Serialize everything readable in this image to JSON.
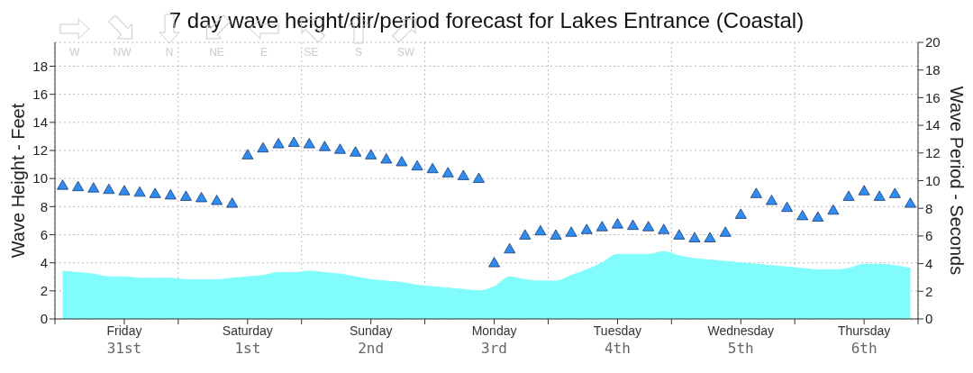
{
  "chart_data": {
    "type": "area",
    "title": "7 day wave height/dir/period forecast for Lakes Entrance (Coastal)",
    "ylabel": "Wave Height - Feet",
    "y2label": "Wave Period - Seconds",
    "annotations": [
      "W",
      "NW",
      "N",
      "NE",
      "E",
      "SE",
      "S",
      "SW"
    ],
    "categories": [
      null,
      null,
      null,
      null,
      "Friday\n31st",
      null,
      null,
      null,
      null,
      null,
      null,
      null,
      "Saturday\n1st",
      null,
      null,
      null,
      null,
      null,
      null,
      null,
      "Sunday\n2nd",
      null,
      null,
      null,
      null,
      null,
      null,
      null,
      "Monday\n3rd",
      null,
      null,
      null,
      null,
      null,
      null,
      null,
      "Tuesday\n4th",
      null,
      null,
      null,
      null,
      null,
      null,
      null,
      "Wednesday\n5th",
      null,
      null,
      null,
      null,
      null,
      null,
      null,
      "Thursday\n6th",
      null,
      null,
      null
    ],
    "ylim": [
      0,
      19.7
    ],
    "yticks": [
      0,
      2,
      4,
      6,
      8,
      10,
      12,
      14,
      16,
      18
    ],
    "y2lim": [
      0,
      20
    ],
    "y2ticks": [
      0,
      2,
      4,
      6,
      8,
      10,
      12,
      14,
      16,
      18,
      20
    ],
    "grid": true,
    "series": [
      {
        "color": "#80fcfc",
        "values": [
          3.4,
          3.3,
          3.2,
          3.0,
          3.0,
          2.9,
          2.9,
          2.9,
          2.8,
          2.8,
          2.8,
          2.9,
          3.0,
          3.1,
          3.3,
          3.3,
          3.4,
          3.3,
          3.2,
          3.0,
          2.8,
          2.7,
          2.6,
          2.4,
          2.3,
          2.2,
          2.1,
          2.0,
          2.3,
          3.0,
          2.8,
          2.7,
          2.7,
          3.1,
          3.5,
          4.0,
          4.6,
          4.6,
          4.6,
          4.8,
          4.5,
          4.3,
          4.2,
          4.1,
          4.0,
          3.9,
          3.8,
          3.7,
          3.6,
          3.5,
          3.5,
          3.6,
          3.9,
          3.9,
          3.8,
          3.6
        ]
      },
      {
        "type": "scatter",
        "axis": "y2",
        "color": "#2f8cf0",
        "marker": "triangle",
        "values": [
          9.6,
          9.5,
          9.4,
          9.3,
          9.2,
          9.1,
          9.0,
          8.9,
          8.8,
          8.7,
          8.5,
          8.3,
          11.8,
          12.3,
          12.6,
          12.7,
          12.6,
          12.4,
          12.2,
          12.0,
          11.8,
          11.5,
          11.3,
          11.0,
          10.8,
          10.5,
          10.3,
          10.1,
          4.0,
          5.0,
          6.0,
          6.3,
          6.0,
          6.2,
          6.4,
          6.6,
          6.8,
          6.7,
          6.6,
          6.4,
          6.0,
          5.8,
          5.8,
          6.2,
          7.5,
          9.0,
          8.5,
          8.0,
          7.4,
          7.3,
          7.8,
          8.8,
          9.2,
          8.8,
          9.0,
          8.3
        ]
      }
    ]
  }
}
